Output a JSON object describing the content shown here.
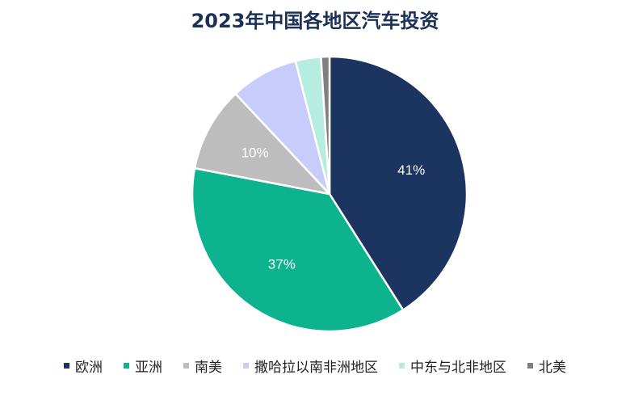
{
  "chart_data": {
    "type": "pie",
    "title": "2023年中国各地区汽车投资",
    "categories": [
      "欧洲",
      "亚洲",
      "南美",
      "撒哈拉以南非洲地区",
      "中东与北非地区",
      "北美"
    ],
    "values": [
      41,
      37,
      10,
      8,
      3,
      1
    ],
    "data_labels": [
      "41%",
      "37%",
      "10%",
      "",
      "",
      ""
    ],
    "colors": [
      "#1c3560",
      "#0db28f",
      "#bdbdbd",
      "#c7ccfa",
      "#b7ede0",
      "#808080"
    ],
    "legend_position": "bottom",
    "start": "12 o'clock",
    "direction": "clockwise"
  }
}
